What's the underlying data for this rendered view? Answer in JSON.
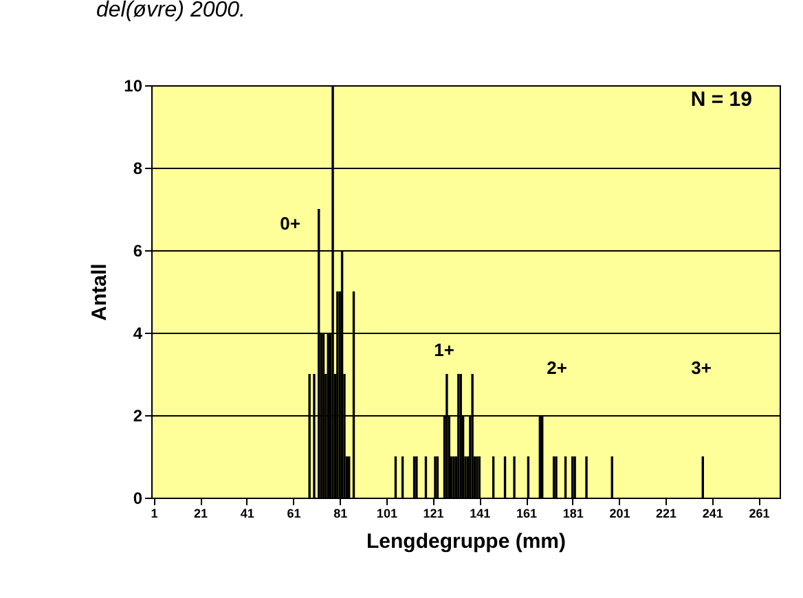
{
  "chart_data": {
    "type": "bar",
    "xlabel": "Lengdegruppe (mm)",
    "ylabel": "Antall",
    "x": [
      68,
      70,
      72,
      73,
      74,
      75,
      76,
      77,
      78,
      79,
      80,
      81,
      82,
      83,
      84,
      85,
      87,
      105,
      108,
      113,
      114,
      118,
      122,
      123,
      126,
      127,
      128,
      129,
      130,
      131,
      132,
      133,
      134,
      135,
      136,
      137,
      138,
      139,
      140,
      141,
      147,
      152,
      156,
      162,
      167,
      168,
      173,
      174,
      178,
      181,
      182,
      187,
      198,
      237
    ],
    "values": [
      3,
      3,
      7,
      4,
      4,
      3,
      4,
      4,
      10,
      3,
      5,
      5,
      6,
      3,
      1,
      1,
      5,
      1,
      1,
      1,
      1,
      1,
      1,
      1,
      2,
      3,
      2,
      1,
      1,
      1,
      3,
      3,
      2,
      1,
      1,
      2,
      3,
      1,
      1,
      1,
      1,
      1,
      1,
      1,
      2,
      2,
      1,
      1,
      1,
      1,
      1,
      1,
      1,
      1
    ],
    "color": "#000000",
    "xlim": [
      0,
      270
    ],
    "xticks": [
      1,
      21,
      41,
      61,
      81,
      101,
      121,
      141,
      161,
      181,
      201,
      221,
      241,
      261
    ],
    "ylim": [
      0,
      10
    ],
    "yticks": [
      0,
      2,
      4,
      6,
      8,
      10
    ],
    "grid": "y",
    "annotations": [
      "del(øvre) 2000.",
      "N = 19",
      "0+",
      "1+",
      "2+",
      "3+"
    ]
  }
}
